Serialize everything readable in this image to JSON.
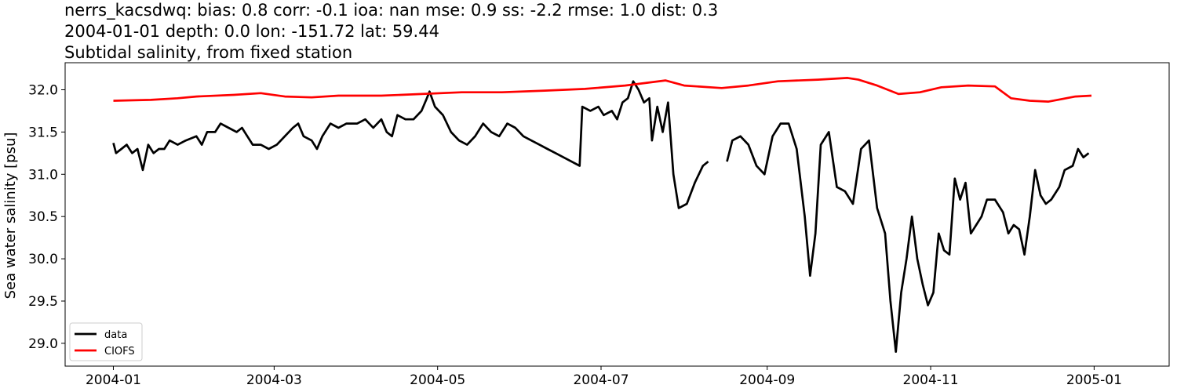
{
  "title_lines": [
    "nerrs_kacsdwq: bias: 0.8  corr: -0.1  ioa: nan  mse: 0.9  ss: -2.2  rmse: 1.0  dist: 0.3",
    "2004-01-01 depth: 0.0 lon: -151.72 lat: 59.44",
    "Subtidal salinity, from fixed station"
  ],
  "chart_data": {
    "type": "line",
    "title": "nerrs_kacsdwq: bias: 0.8  corr: -0.1  ioa: nan  mse: 0.9  ss: -2.2  rmse: 1.0  dist: 0.3\n2004-01-01 depth: 0.0 lon: -151.72 lat: 59.44\nSubtidal salinity, from fixed station",
    "xlabel": "",
    "ylabel": "Sea water salinity [psu]",
    "x_axis": "date",
    "xlim": [
      "2003-12-14",
      "2005-01-29"
    ],
    "ylim": [
      28.73,
      32.32
    ],
    "x_ticks": [
      "2004-01",
      "2004-03",
      "2004-05",
      "2004-07",
      "2004-09",
      "2004-11",
      "2005-01"
    ],
    "y_ticks": [
      29.0,
      29.5,
      30.0,
      30.5,
      31.0,
      31.5,
      32.0
    ],
    "grid": false,
    "legend_position": "lower-left",
    "series": [
      {
        "name": "data",
        "color": "#000000",
        "points": [
          [
            "2004-01-01",
            31.37
          ],
          [
            "2004-01-02",
            31.25
          ],
          [
            "2004-01-04",
            31.3
          ],
          [
            "2004-01-06",
            31.35
          ],
          [
            "2004-01-08",
            31.25
          ],
          [
            "2004-01-10",
            31.3
          ],
          [
            "2004-01-12",
            31.05
          ],
          [
            "2004-01-14",
            31.35
          ],
          [
            "2004-01-16",
            31.25
          ],
          [
            "2004-01-18",
            31.3
          ],
          [
            "2004-01-20",
            31.3
          ],
          [
            "2004-01-22",
            31.4
          ],
          [
            "2004-01-25",
            31.35
          ],
          [
            "2004-01-28",
            31.4
          ],
          [
            "2004-02-01",
            31.45
          ],
          [
            "2004-02-03",
            31.35
          ],
          [
            "2004-02-05",
            31.5
          ],
          [
            "2004-02-08",
            31.5
          ],
          [
            "2004-02-10",
            31.6
          ],
          [
            "2004-02-13",
            31.55
          ],
          [
            "2004-02-16",
            31.5
          ],
          [
            "2004-02-18",
            31.55
          ],
          [
            "2004-02-20",
            31.45
          ],
          [
            "2004-02-22",
            31.35
          ],
          [
            "2004-02-25",
            31.35
          ],
          [
            "2004-02-28",
            31.3
          ],
          [
            "2004-03-02",
            31.35
          ],
          [
            "2004-03-05",
            31.45
          ],
          [
            "2004-03-08",
            31.55
          ],
          [
            "2004-03-10",
            31.6
          ],
          [
            "2004-03-12",
            31.45
          ],
          [
            "2004-03-15",
            31.4
          ],
          [
            "2004-03-17",
            31.3
          ],
          [
            "2004-03-19",
            31.45
          ],
          [
            "2004-03-22",
            31.6
          ],
          [
            "2004-03-25",
            31.55
          ],
          [
            "2004-03-28",
            31.6
          ],
          [
            "2004-04-01",
            31.6
          ],
          [
            "2004-04-04",
            31.65
          ],
          [
            "2004-04-07",
            31.55
          ],
          [
            "2004-04-10",
            31.65
          ],
          [
            "2004-04-12",
            31.5
          ],
          [
            "2004-04-14",
            31.45
          ],
          [
            "2004-04-16",
            31.7
          ],
          [
            "2004-04-19",
            31.65
          ],
          [
            "2004-04-22",
            31.65
          ],
          [
            "2004-04-25",
            31.75
          ],
          [
            "2004-04-27",
            31.9
          ],
          [
            "2004-04-28",
            31.98
          ],
          [
            "2004-04-30",
            31.8
          ],
          [
            "2004-05-03",
            31.7
          ],
          [
            "2004-05-06",
            31.5
          ],
          [
            "2004-05-09",
            31.4
          ],
          [
            "2004-05-12",
            31.35
          ],
          [
            "2004-05-15",
            31.45
          ],
          [
            "2004-05-18",
            31.6
          ],
          [
            "2004-05-21",
            31.5
          ],
          [
            "2004-05-24",
            31.45
          ],
          [
            "2004-05-27",
            31.6
          ],
          [
            "2004-05-30",
            31.55
          ],
          [
            "2004-06-02",
            31.45
          ],
          [
            "2004-06-05",
            31.4
          ],
          [
            "2004-06-08",
            31.35
          ],
          [
            "2004-06-11",
            31.3
          ],
          [
            "2004-06-14",
            31.25
          ],
          [
            "2004-06-17",
            31.2
          ],
          [
            "2004-06-20",
            31.15
          ],
          [
            "2004-06-23",
            31.1
          ],
          [
            "2004-06-24",
            31.8
          ],
          [
            "2004-06-27",
            31.75
          ],
          [
            "2004-06-30",
            31.8
          ],
          [
            "2004-07-02",
            31.7
          ],
          [
            "2004-07-05",
            31.75
          ],
          [
            "2004-07-07",
            31.65
          ],
          [
            "2004-07-09",
            31.85
          ],
          [
            "2004-07-11",
            31.9
          ],
          [
            "2004-07-13",
            32.1
          ],
          [
            "2004-07-15",
            32.0
          ],
          [
            "2004-07-17",
            31.85
          ],
          [
            "2004-07-19",
            31.9
          ],
          [
            "2004-07-20",
            31.4
          ],
          [
            "2004-07-22",
            31.8
          ],
          [
            "2004-07-24",
            31.5
          ],
          [
            "2004-07-26",
            31.85
          ],
          [
            "2004-07-28",
            31.0
          ],
          [
            "2004-07-30",
            30.6
          ],
          [
            "2004-08-02",
            30.65
          ],
          [
            "2004-08-05",
            30.9
          ],
          [
            "2004-08-08",
            31.1
          ],
          [
            "2004-08-10",
            31.15
          ],
          [
            "2004-08-12",
            null
          ],
          [
            "2004-08-17",
            31.15
          ],
          [
            "2004-08-19",
            31.4
          ],
          [
            "2004-08-22",
            31.45
          ],
          [
            "2004-08-25",
            31.35
          ],
          [
            "2004-08-28",
            31.1
          ],
          [
            "2004-08-31",
            31.0
          ],
          [
            "2004-09-03",
            31.45
          ],
          [
            "2004-09-06",
            31.6
          ],
          [
            "2004-09-09",
            31.6
          ],
          [
            "2004-09-12",
            31.3
          ],
          [
            "2004-09-15",
            30.5
          ],
          [
            "2004-09-17",
            29.8
          ],
          [
            "2004-09-19",
            30.3
          ],
          [
            "2004-09-21",
            31.35
          ],
          [
            "2004-09-24",
            31.5
          ],
          [
            "2004-09-27",
            30.85
          ],
          [
            "2004-09-30",
            30.8
          ],
          [
            "2004-10-03",
            30.65
          ],
          [
            "2004-10-06",
            31.3
          ],
          [
            "2004-10-09",
            31.4
          ],
          [
            "2004-10-12",
            30.6
          ],
          [
            "2004-10-15",
            30.3
          ],
          [
            "2004-10-17",
            29.5
          ],
          [
            "2004-10-19",
            28.9
          ],
          [
            "2004-10-21",
            29.6
          ],
          [
            "2004-10-23",
            30.0
          ],
          [
            "2004-10-25",
            30.5
          ],
          [
            "2004-10-27",
            30.0
          ],
          [
            "2004-10-29",
            29.7
          ],
          [
            "2004-10-31",
            29.45
          ],
          [
            "2004-11-02",
            29.6
          ],
          [
            "2004-11-04",
            30.3
          ],
          [
            "2004-11-06",
            30.1
          ],
          [
            "2004-11-08",
            30.05
          ],
          [
            "2004-11-10",
            30.95
          ],
          [
            "2004-11-12",
            30.7
          ],
          [
            "2004-11-14",
            30.9
          ],
          [
            "2004-11-16",
            30.3
          ],
          [
            "2004-11-18",
            30.4
          ],
          [
            "2004-11-20",
            30.5
          ],
          [
            "2004-11-22",
            30.7
          ],
          [
            "2004-11-25",
            30.7
          ],
          [
            "2004-11-28",
            30.55
          ],
          [
            "2004-11-30",
            30.3
          ],
          [
            "2004-12-02",
            30.4
          ],
          [
            "2004-12-04",
            30.35
          ],
          [
            "2004-12-06",
            30.05
          ],
          [
            "2004-12-08",
            30.5
          ],
          [
            "2004-12-10",
            31.05
          ],
          [
            "2004-12-12",
            30.75
          ],
          [
            "2004-12-14",
            30.65
          ],
          [
            "2004-12-16",
            30.7
          ],
          [
            "2004-12-19",
            30.85
          ],
          [
            "2004-12-21",
            31.05
          ],
          [
            "2004-12-24",
            31.1
          ],
          [
            "2004-12-26",
            31.3
          ],
          [
            "2004-12-28",
            31.2
          ],
          [
            "2004-12-30",
            31.25
          ]
        ]
      },
      {
        "name": "CIOFS",
        "color": "#ff0000",
        "points": [
          [
            "2004-01-01",
            31.87
          ],
          [
            "2004-01-15",
            31.88
          ],
          [
            "2004-01-25",
            31.9
          ],
          [
            "2004-02-01",
            31.92
          ],
          [
            "2004-02-15",
            31.94
          ],
          [
            "2004-02-25",
            31.96
          ],
          [
            "2004-03-05",
            31.92
          ],
          [
            "2004-03-15",
            31.91
          ],
          [
            "2004-03-25",
            31.93
          ],
          [
            "2004-04-10",
            31.93
          ],
          [
            "2004-04-25",
            31.95
          ],
          [
            "2004-05-10",
            31.97
          ],
          [
            "2004-05-25",
            31.97
          ],
          [
            "2004-06-10",
            31.99
          ],
          [
            "2004-06-25",
            32.01
          ],
          [
            "2004-07-10",
            32.05
          ],
          [
            "2004-07-25",
            32.11
          ],
          [
            "2004-08-01",
            32.05
          ],
          [
            "2004-08-15",
            32.02
          ],
          [
            "2004-08-25",
            32.05
          ],
          [
            "2004-09-05",
            32.1
          ],
          [
            "2004-09-20",
            32.12
          ],
          [
            "2004-10-01",
            32.14
          ],
          [
            "2004-10-05",
            32.12
          ],
          [
            "2004-10-12",
            32.05
          ],
          [
            "2004-10-20",
            31.95
          ],
          [
            "2004-10-28",
            31.97
          ],
          [
            "2004-11-05",
            32.03
          ],
          [
            "2004-11-15",
            32.05
          ],
          [
            "2004-11-25",
            32.04
          ],
          [
            "2004-12-01",
            31.9
          ],
          [
            "2004-12-08",
            31.87
          ],
          [
            "2004-12-15",
            31.86
          ],
          [
            "2004-12-25",
            31.92
          ],
          [
            "2004-12-31",
            31.93
          ]
        ]
      }
    ]
  }
}
